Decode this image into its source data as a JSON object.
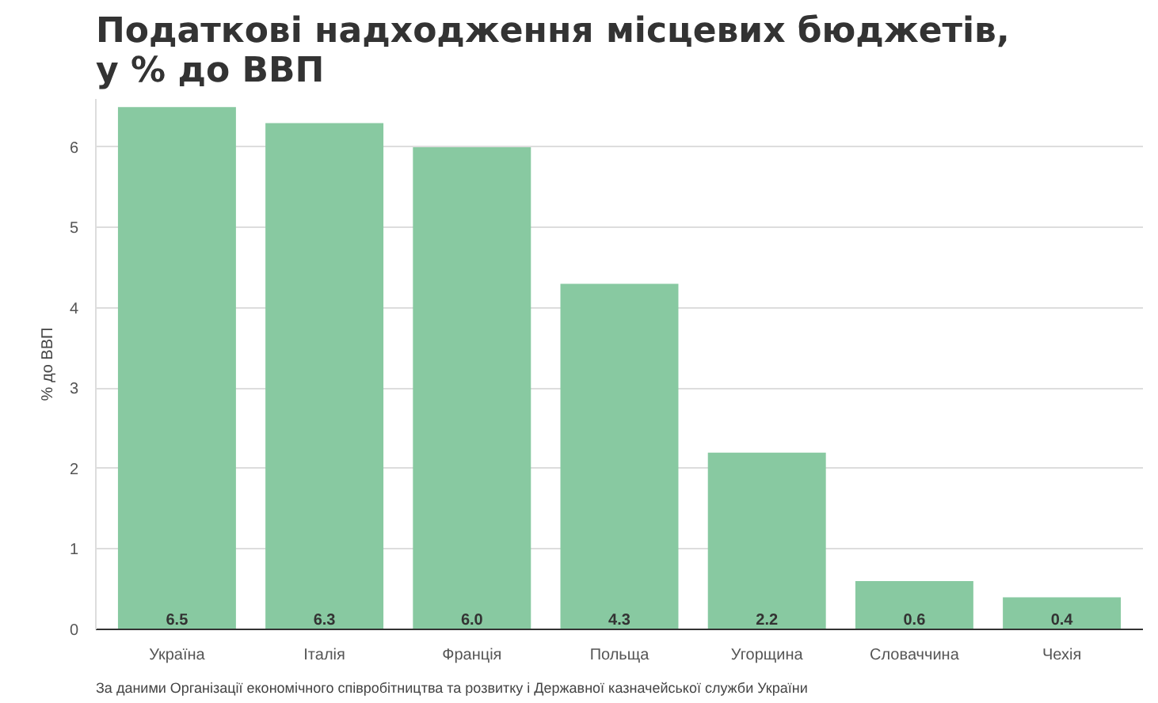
{
  "chart_data": {
    "type": "bar",
    "title": "Податкові надходження місцевих бюджетів,\nу % до ВВП",
    "ylabel": "% до ВВП",
    "categories": [
      "Україна",
      "Італія",
      "Франція",
      "Польща",
      "Угорщина",
      "Словаччина",
      "Чехія"
    ],
    "values": [
      6.5,
      6.3,
      6.0,
      4.3,
      2.2,
      0.6,
      0.4
    ],
    "color": "#88c9a1",
    "value_labels": [
      "6.5",
      "6.3",
      "6.0",
      "4.3",
      "2.2",
      "0.6",
      "0.4"
    ],
    "ylim": [
      0,
      6.6
    ],
    "yticks": [
      0,
      1,
      2,
      3,
      4,
      5,
      6
    ],
    "grid": "y",
    "annotations": [
      "За даними Організації економічного співробітництва та розвитку і Державної казначейської служби України"
    ]
  }
}
